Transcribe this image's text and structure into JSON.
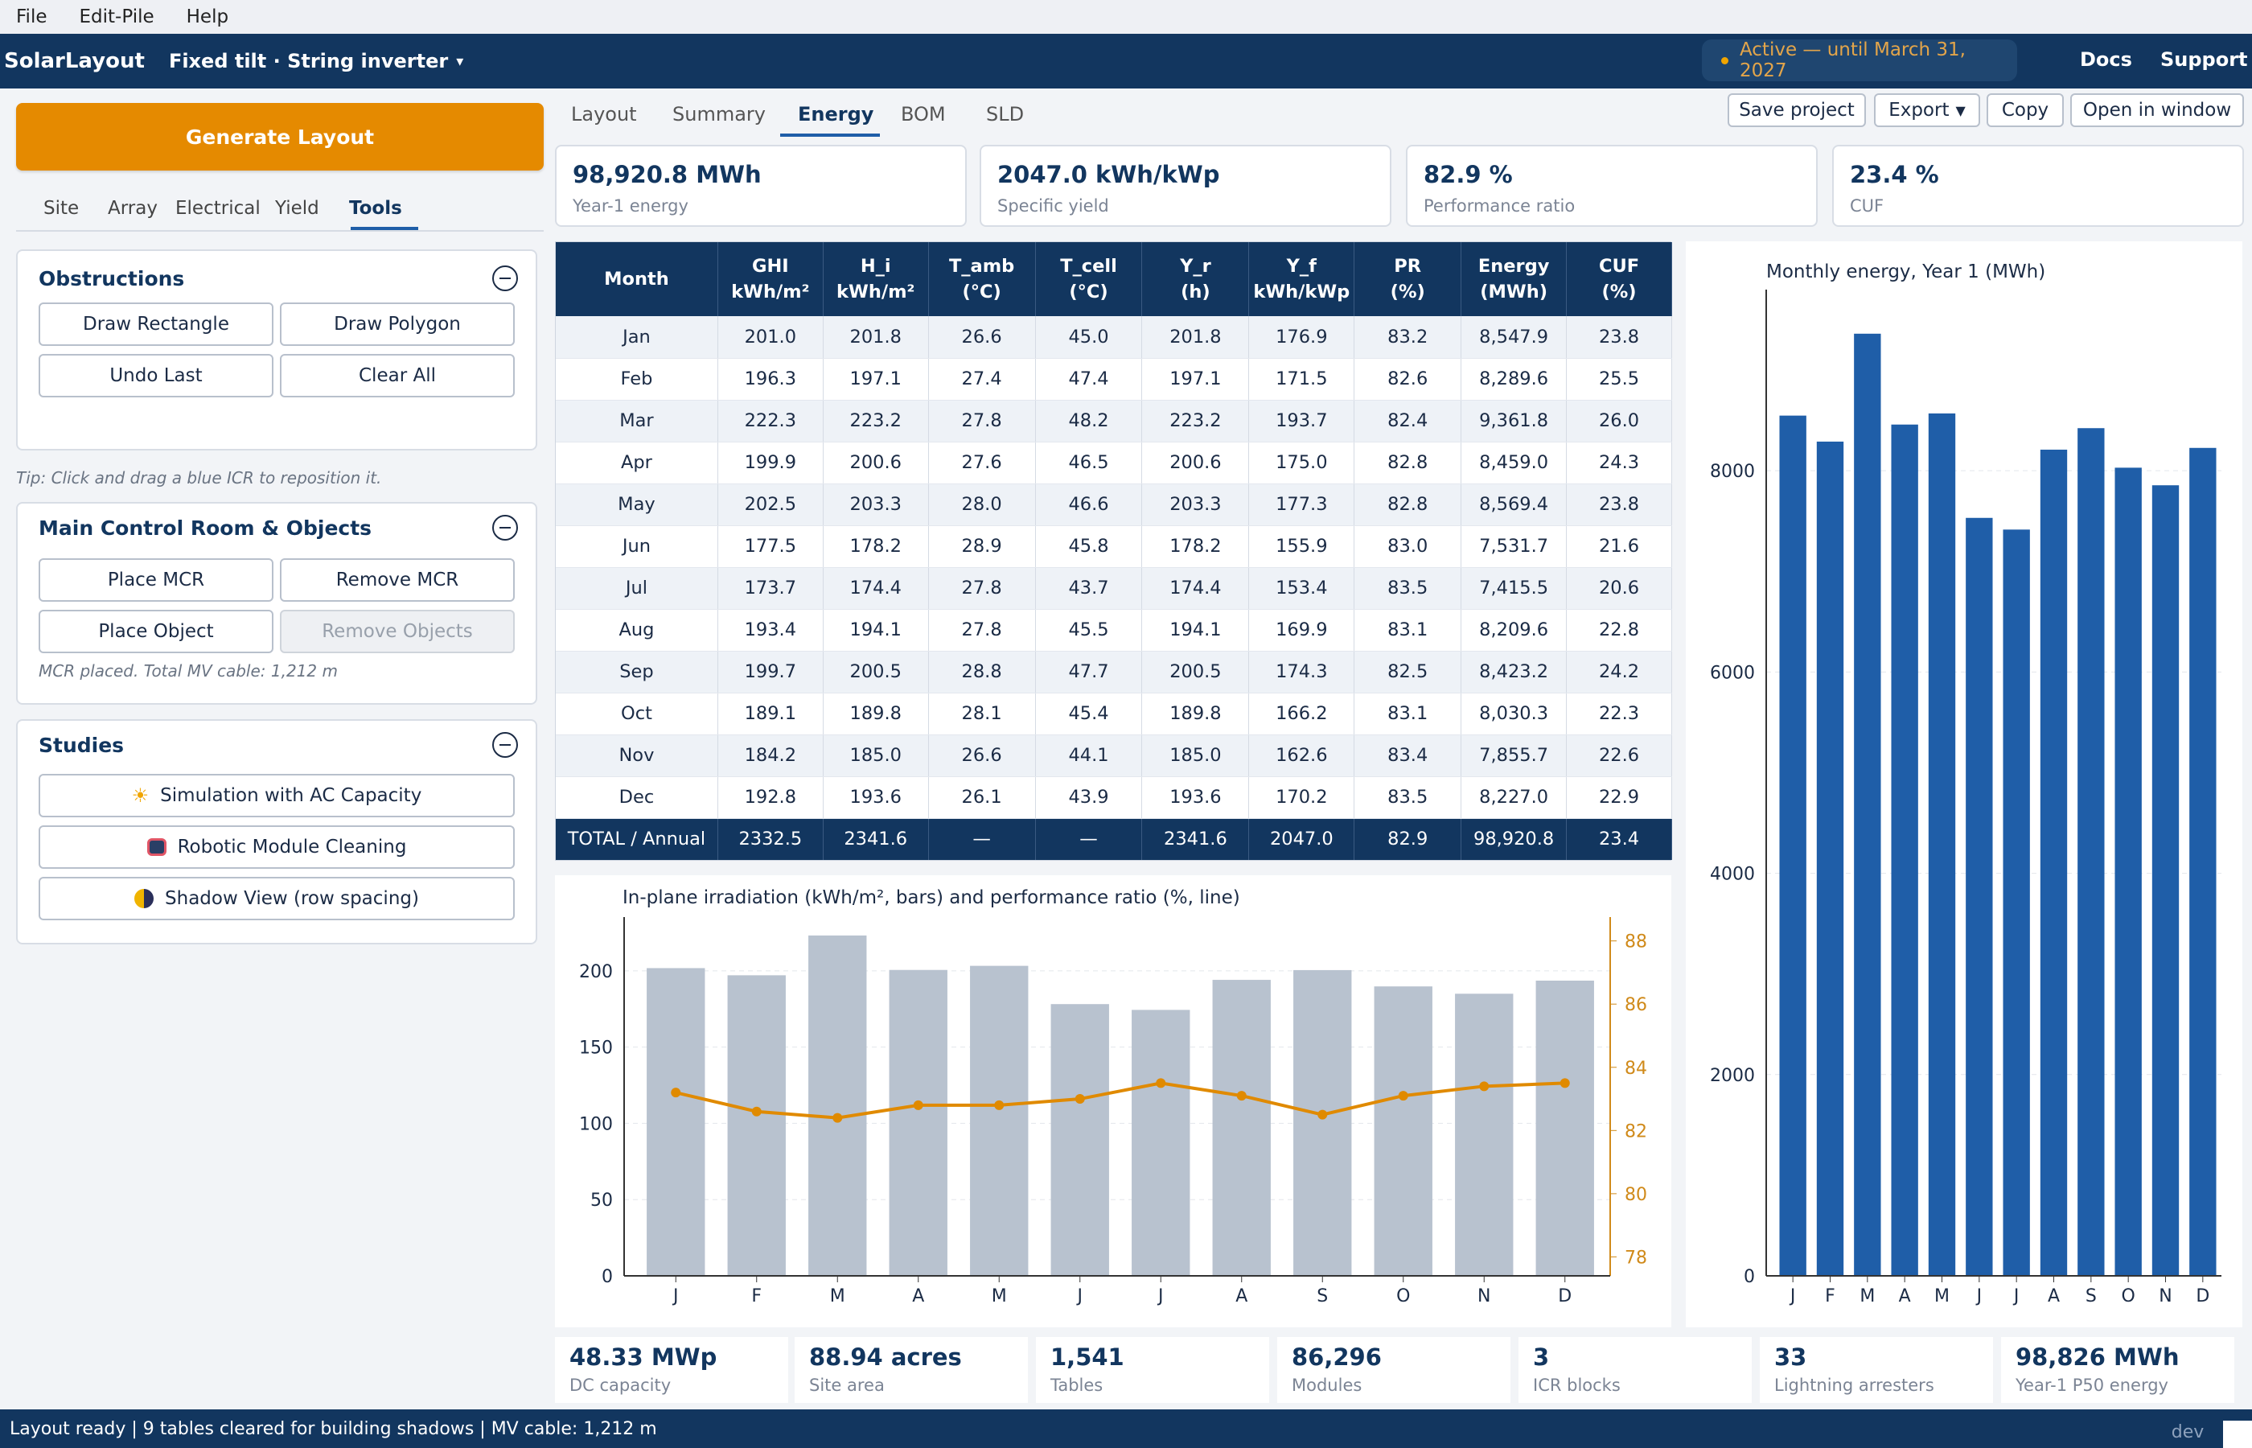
{
  "menu": [
    "File",
    "Edit-Pile",
    "Help"
  ],
  "app": {
    "brand": "SolarLayout",
    "mode": "Fixed tilt · String inverter",
    "license": "Active — until March 31, 2027",
    "docs": "Docs",
    "support": "Support"
  },
  "sidebar": {
    "generate_label": "Generate Layout",
    "tabs": [
      "Site",
      "Array",
      "Electrical",
      "Yield",
      "Tools"
    ],
    "active_tab": "Tools",
    "obstructions": {
      "title": "Obstructions",
      "buttons": [
        "Draw Rectangle",
        "Draw Polygon",
        "Undo Last",
        "Clear All"
      ]
    },
    "tip": "Tip: Click and drag a blue ICR to reposition it.",
    "mcr": {
      "title": "Main Control Room & Objects",
      "buttons": [
        "Place MCR",
        "Remove MCR",
        "Place Object",
        "Remove Objects"
      ],
      "note": "MCR placed. Total MV cable: 1,212 m"
    },
    "studies": {
      "title": "Studies",
      "buttons": [
        {
          "label": "Simulation with AC Capacity",
          "icon": "sun-icon"
        },
        {
          "label": "Robotic Module Cleaning",
          "icon": "robot-icon"
        },
        {
          "label": "Shadow View (row spacing)",
          "icon": "half-moon-icon"
        }
      ]
    }
  },
  "main": {
    "tabs": [
      "Layout",
      "Summary",
      "Energy",
      "BOM",
      "SLD"
    ],
    "active_tab": "Energy",
    "toolbar": {
      "save": "Save project",
      "export": "Export",
      "copy": "Copy",
      "open": "Open in window"
    },
    "kpis": [
      {
        "value": "98,920.8 MWh",
        "label": "Year-1 energy"
      },
      {
        "value": "2047.0 kWh/kWp",
        "label": "Specific yield"
      },
      {
        "value": "82.9 %",
        "label": "Performance ratio"
      },
      {
        "value": "23.4 %",
        "label": "CUF"
      }
    ],
    "table": {
      "headers": [
        [
          "Month",
          ""
        ],
        [
          "GHI",
          "kWh/m²"
        ],
        [
          "H_i",
          "kWh/m²"
        ],
        [
          "T_amb",
          "(°C)"
        ],
        [
          "T_cell",
          "(°C)"
        ],
        [
          "Y_r",
          "(h)"
        ],
        [
          "Y_f",
          "kWh/kWp"
        ],
        [
          "PR",
          "(%)"
        ],
        [
          "Energy",
          "(MWh)"
        ],
        [
          "CUF",
          "(%)"
        ]
      ],
      "rows": [
        [
          "Jan",
          "201.0",
          "201.8",
          "26.6",
          "45.0",
          "201.8",
          "176.9",
          "83.2",
          "8,547.9",
          "23.8"
        ],
        [
          "Feb",
          "196.3",
          "197.1",
          "27.4",
          "47.4",
          "197.1",
          "171.5",
          "82.6",
          "8,289.6",
          "25.5"
        ],
        [
          "Mar",
          "222.3",
          "223.2",
          "27.8",
          "48.2",
          "223.2",
          "193.7",
          "82.4",
          "9,361.8",
          "26.0"
        ],
        [
          "Apr",
          "199.9",
          "200.6",
          "27.6",
          "46.5",
          "200.6",
          "175.0",
          "82.8",
          "8,459.0",
          "24.3"
        ],
        [
          "May",
          "202.5",
          "203.3",
          "28.0",
          "46.6",
          "203.3",
          "177.3",
          "82.8",
          "8,569.4",
          "23.8"
        ],
        [
          "Jun",
          "177.5",
          "178.2",
          "28.9",
          "45.8",
          "178.2",
          "155.9",
          "83.0",
          "7,531.7",
          "21.6"
        ],
        [
          "Jul",
          "173.7",
          "174.4",
          "27.8",
          "43.7",
          "174.4",
          "153.4",
          "83.5",
          "7,415.5",
          "20.6"
        ],
        [
          "Aug",
          "193.4",
          "194.1",
          "27.8",
          "45.5",
          "194.1",
          "169.9",
          "83.1",
          "8,209.6",
          "22.8"
        ],
        [
          "Sep",
          "199.7",
          "200.5",
          "28.8",
          "47.7",
          "200.5",
          "174.3",
          "82.5",
          "8,423.2",
          "24.2"
        ],
        [
          "Oct",
          "189.1",
          "189.8",
          "28.1",
          "45.4",
          "189.8",
          "166.2",
          "83.1",
          "8,030.3",
          "22.3"
        ],
        [
          "Nov",
          "184.2",
          "185.0",
          "26.6",
          "44.1",
          "185.0",
          "162.6",
          "83.4",
          "7,855.7",
          "22.6"
        ],
        [
          "Dec",
          "192.8",
          "193.6",
          "26.1",
          "43.9",
          "193.6",
          "170.2",
          "83.5",
          "8,227.0",
          "22.9"
        ]
      ],
      "total": [
        "TOTAL / Annual",
        "2332.5",
        "2341.6",
        "—",
        "—",
        "2341.6",
        "2047.0",
        "82.9",
        "98,920.8",
        "23.4"
      ]
    },
    "bottom_kpis": [
      {
        "value": "48.33 MWp",
        "label": "DC capacity"
      },
      {
        "value": "88.94 acres",
        "label": "Site area"
      },
      {
        "value": "1,541",
        "label": "Tables"
      },
      {
        "value": "86,296",
        "label": "Modules"
      },
      {
        "value": "3",
        "label": "ICR blocks"
      },
      {
        "value": "33",
        "label": "Lightning arresters"
      },
      {
        "value": "98,826 MWh",
        "label": "Year-1 P50 energy"
      }
    ]
  },
  "status": {
    "text": "Layout ready | 9 tables cleared for building shadows | MV cable: 1,212 m",
    "env": "dev"
  },
  "colors": {
    "navy": "#12365f",
    "accent": "#e58a00",
    "bar_blue": "#1f5ea8",
    "bar_grey": "#b8c2cf",
    "line_orange": "#e08a00"
  },
  "chart_data": [
    {
      "type": "bar",
      "title": "In-plane irradiation (kWh/m², bars) and performance ratio (%, line)",
      "categories": [
        "J",
        "F",
        "M",
        "A",
        "M",
        "J",
        "J",
        "A",
        "S",
        "O",
        "N",
        "D"
      ],
      "series": [
        {
          "name": "In-plane irradiation",
          "type": "bar",
          "axis": "left",
          "values": [
            201.8,
            197.1,
            223.2,
            200.6,
            203.3,
            178.2,
            174.4,
            194.1,
            200.5,
            189.8,
            185.0,
            193.6
          ]
        },
        {
          "name": "Performance ratio",
          "type": "line",
          "axis": "right",
          "values": [
            83.2,
            82.6,
            82.4,
            82.8,
            82.8,
            83.0,
            83.5,
            83.1,
            82.5,
            83.1,
            83.4,
            83.5
          ]
        }
      ],
      "ylim": [
        0,
        230
      ],
      "yticks": [
        0,
        50,
        100,
        150,
        200
      ],
      "y2lim": [
        77.4,
        88.5
      ],
      "y2ticks": [
        78,
        80,
        82,
        84,
        86,
        88
      ],
      "grid": true
    },
    {
      "type": "bar",
      "title": "Monthly energy, Year 1 (MWh)",
      "categories": [
        "J",
        "F",
        "M",
        "A",
        "M",
        "J",
        "J",
        "A",
        "S",
        "O",
        "N",
        "D"
      ],
      "values": [
        8547.9,
        8289.6,
        9361.8,
        8459.0,
        8569.4,
        7531.7,
        7415.5,
        8209.6,
        8423.2,
        8030.3,
        7855.7,
        8227.0
      ],
      "ylim": [
        0,
        9800
      ],
      "yticks": [
        0,
        2000,
        4000,
        6000,
        8000
      ],
      "grid": true
    }
  ]
}
